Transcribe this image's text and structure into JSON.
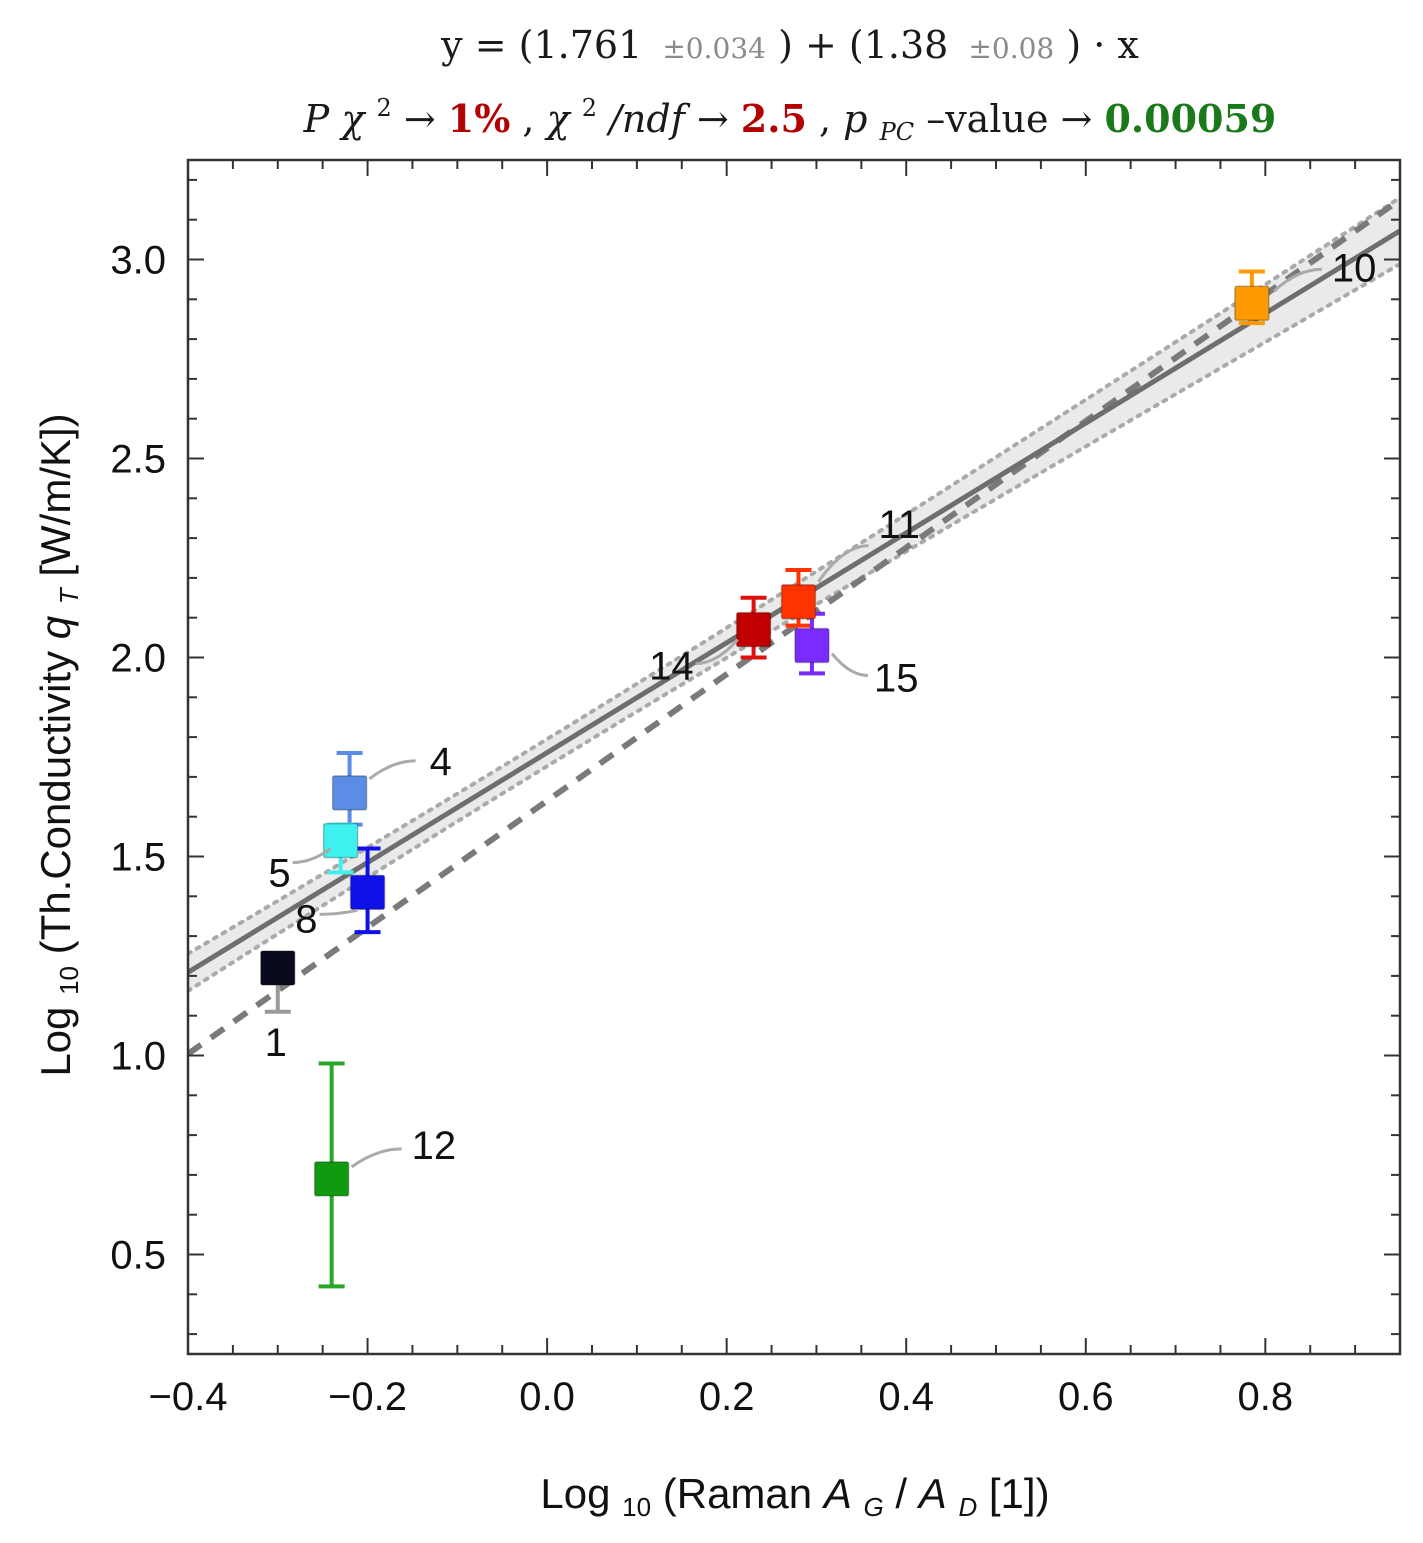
{
  "title": {
    "equation": {
      "prefix": "y = (1.761",
      "intercept_unc": "±0.034",
      "mid": ") + (1.38",
      "slope_unc": "±0.08",
      "suffix": ") · x"
    },
    "stats": {
      "p_label": "P",
      "chi": "χ",
      "sq": "2",
      "arrow": " → ",
      "p_value": "1%",
      "sep1": " ,  ",
      "chi2ndf_tail": "/ndf",
      "chi2ndf_value": "2.5",
      "sep2": " ,  ",
      "ppc_p": "p",
      "ppc_sub": "PC",
      "ppc_tail": " –value → ",
      "ppc_value": "0.00059"
    }
  },
  "colors": {
    "red_value": "#b30000",
    "green_value": "#1a7a1a"
  },
  "chart_data": {
    "type": "scatter",
    "xlabel": {
      "pre": "Log",
      "sub": "10",
      "mid": "(Raman ",
      "a": "A",
      "g": "G",
      "slash": "/",
      "a2": "A",
      "d": "D",
      "post": " [1])"
    },
    "ylabel": {
      "pre": "Log",
      "sub": "10",
      "mid": "(Th.Conductivity ",
      "q": "q",
      "t": "T",
      "post": " [W/m/K])"
    },
    "xlim": [
      -0.4,
      0.95
    ],
    "ylim": [
      0.25,
      3.25
    ],
    "xticks": [
      -0.4,
      -0.2,
      0.0,
      0.2,
      0.4,
      0.6,
      0.8
    ],
    "xtick_labels": [
      "−0.4",
      "−0.2",
      "0.0",
      "0.2",
      "0.4",
      "0.6",
      "0.8"
    ],
    "yticks": [
      0.5,
      1.0,
      1.5,
      2.0,
      2.5,
      3.0
    ],
    "ytick_labels": [
      "0.5",
      "1.0",
      "1.5",
      "2.0",
      "2.5",
      "3.0"
    ],
    "fit": {
      "intercept": 1.761,
      "slope": 1.38,
      "intercept_unc": 0.034,
      "slope_unc": 0.08
    },
    "dashed_line": {
      "intercept": 1.64,
      "slope": 1.59
    },
    "points": [
      {
        "label": "1",
        "x": -0.3,
        "y": 1.22,
        "err_lo": 0.11,
        "err_hi": 0.0,
        "color": "#0a0a1e",
        "err_color": "#9a9a9a"
      },
      {
        "label": "4",
        "x": -0.22,
        "y": 1.66,
        "err_lo": 0.08,
        "err_hi": 0.1,
        "color": "#5b8de6",
        "err_color": "#5b8de6"
      },
      {
        "label": "5",
        "x": -0.23,
        "y": 1.54,
        "err_lo": 0.08,
        "err_hi": 0.04,
        "color": "#3ef0ee",
        "err_color": "#3ef0ee"
      },
      {
        "label": "8",
        "x": -0.2,
        "y": 1.41,
        "err_lo": 0.1,
        "err_hi": 0.11,
        "color": "#1010e8",
        "err_color": "#1010e8"
      },
      {
        "label": "10",
        "x": 0.785,
        "y": 2.89,
        "err_lo": 0.05,
        "err_hi": 0.08,
        "color": "#ff9900",
        "err_color": "#ff9900"
      },
      {
        "label": "11",
        "x": 0.28,
        "y": 2.14,
        "err_lo": 0.06,
        "err_hi": 0.08,
        "color": "#ff3300",
        "err_color": "#ff3300"
      },
      {
        "label": "12",
        "x": -0.24,
        "y": 0.69,
        "err_lo": 0.27,
        "err_hi": 0.29,
        "color": "#0f9a0f",
        "err_color": "#2aa82a"
      },
      {
        "label": "14",
        "x": 0.23,
        "y": 2.07,
        "err_lo": 0.07,
        "err_hi": 0.08,
        "color": "#c00000",
        "err_color": "#e01010"
      },
      {
        "label": "15",
        "x": 0.295,
        "y": 2.03,
        "err_lo": 0.07,
        "err_hi": 0.08,
        "color": "#7a2cff",
        "err_color": "#7a2cff"
      }
    ]
  }
}
